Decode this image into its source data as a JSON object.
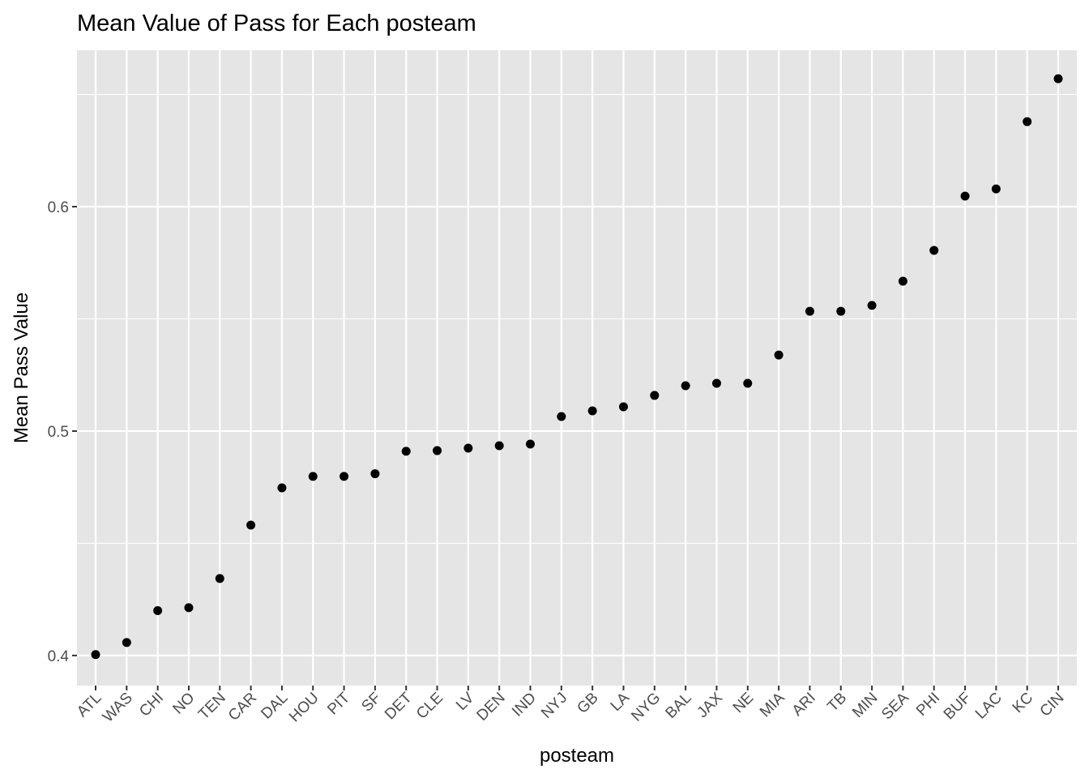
{
  "chart_data": {
    "type": "scatter",
    "title": "Mean Value of Pass for Each posteam",
    "xlabel": "posteam",
    "ylabel": "Mean Pass Value",
    "ylim": [
      0.3866,
      0.6697
    ],
    "yticks": [
      0.4,
      0.5,
      0.6
    ],
    "ytick_labels": [
      "0.4",
      "0.5",
      "0.6"
    ],
    "grid": true,
    "categories": [
      "ATL",
      "WAS",
      "CHI",
      "NO",
      "TEN",
      "CAR",
      "DAL",
      "HOU",
      "PIT",
      "SF",
      "DET",
      "CLE",
      "LV",
      "DEN",
      "IND",
      "NYJ",
      "GB",
      "LA",
      "NYG",
      "BAL",
      "JAX",
      "NE",
      "MIA",
      "ARI",
      "TB",
      "MIN",
      "SEA",
      "PHI",
      "BUF",
      "LAC",
      "KC",
      "CIN"
    ],
    "values": [
      0.4004,
      0.4058,
      0.42,
      0.4213,
      0.4343,
      0.4581,
      0.4747,
      0.4798,
      0.4798,
      0.481,
      0.491,
      0.4913,
      0.4924,
      0.4935,
      0.4942,
      0.5065,
      0.509,
      0.5108,
      0.5159,
      0.5202,
      0.5213,
      0.5213,
      0.5339,
      0.5534,
      0.5534,
      0.556,
      0.5668,
      0.5805,
      0.6047,
      0.6079,
      0.6379,
      0.657
    ],
    "colors": {
      "panel": "#E5E5E5",
      "grid": "#FFFFFF",
      "point": "#000000",
      "tick_text": "#4D4D4D"
    }
  }
}
